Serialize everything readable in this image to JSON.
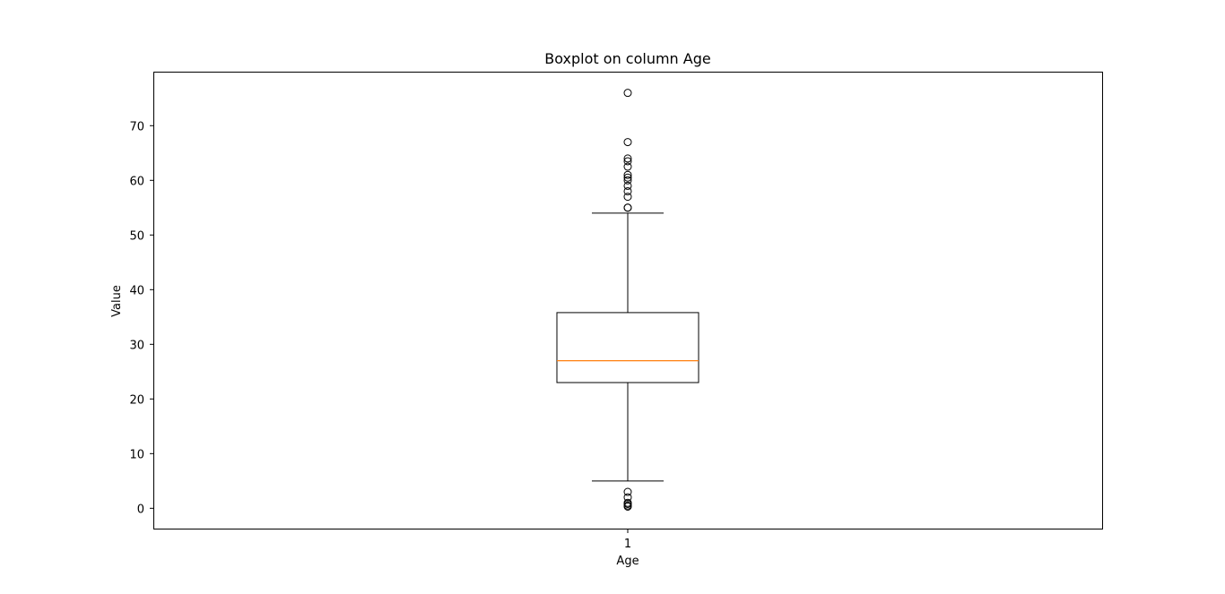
{
  "chart_data": {
    "type": "boxplot",
    "title": "Boxplot on column Age",
    "xlabel": "Age",
    "ylabel": "Value",
    "categories": [
      "1"
    ],
    "ylim": [
      -3.8,
      79.8
    ],
    "yticks": [
      0,
      10,
      20,
      30,
      40,
      50,
      60,
      70
    ],
    "ytick_labels": [
      "0",
      "10",
      "20",
      "30",
      "40",
      "50",
      "60",
      "70"
    ],
    "grid": false,
    "box": {
      "q1": 23.0,
      "median": 27.0,
      "q3": 35.8,
      "whisker_low": 5.0,
      "whisker_high": 54.0,
      "outliers": [
        76,
        67,
        64,
        63.5,
        62.5,
        61,
        60.5,
        60,
        59,
        58,
        57,
        55,
        55,
        3,
        2,
        1,
        0.8,
        0.5,
        0.3
      ]
    },
    "colors": {
      "box": "#000000",
      "median": "#ff7f0e",
      "outlier_edge": "#000000"
    }
  }
}
